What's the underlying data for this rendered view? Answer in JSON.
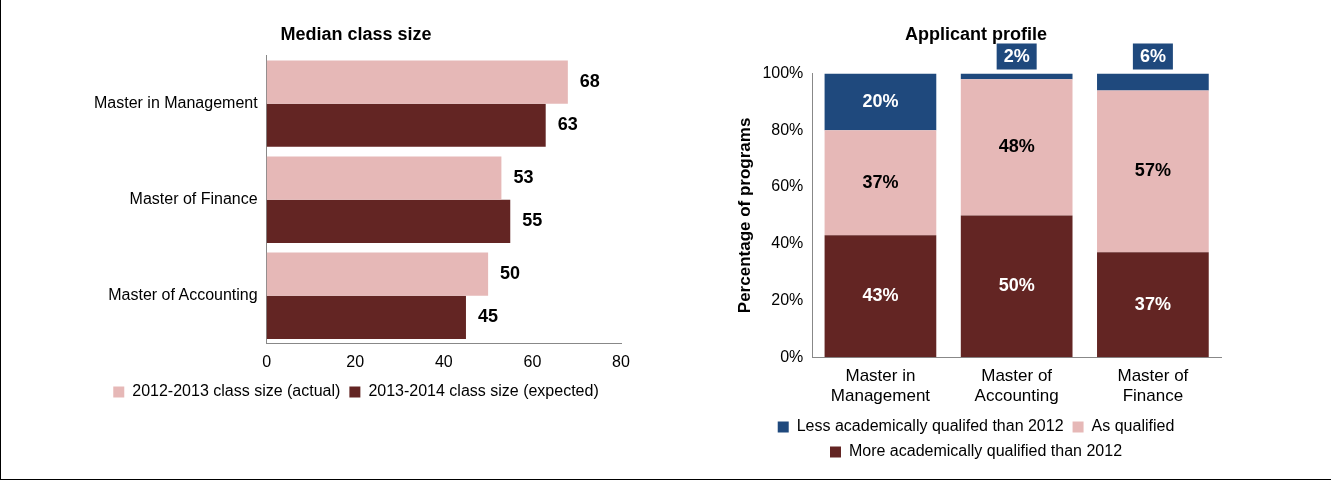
{
  "chart_data": [
    {
      "type": "bar",
      "title": "Median class size",
      "orientation": "horizontal",
      "categories": [
        "Master in Management",
        "Master of Finance",
        "Master of Accounting"
      ],
      "series": [
        {
          "name": "2012-2013 class size (actual)",
          "color": "#e6b8b7",
          "values": [
            68,
            53,
            50
          ]
        },
        {
          "name": "2013-2014 class size (expected)",
          "color": "#632523",
          "values": [
            63,
            55,
            45
          ]
        }
      ],
      "xlim": [
        0,
        80
      ],
      "xticks": [
        0,
        20,
        40,
        60,
        80
      ],
      "data_labels": true,
      "grid": false,
      "legend": "bottom"
    },
    {
      "type": "bar",
      "title": "Applicant profile",
      "ylabel": "Percentage of programs",
      "stacked": true,
      "categories": [
        "Master in Management",
        "Master of Accounting",
        "Master of Finance"
      ],
      "series": [
        {
          "name": "More academically qualified than 2012",
          "color": "#632523",
          "values": [
            43,
            50,
            37
          ],
          "value_labels": [
            "43%",
            "50%",
            "37%"
          ]
        },
        {
          "name": "As qualified",
          "color": "#e6b8b7",
          "values": [
            37,
            48,
            57
          ],
          "value_labels": [
            "37%",
            "48%",
            "57%"
          ]
        },
        {
          "name": "Less academically qualifed than 2012",
          "color": "#1f497d",
          "values": [
            20,
            2,
            6
          ],
          "value_labels": [
            "20%",
            "2%",
            "6%"
          ]
        }
      ],
      "ylim": [
        0,
        100
      ],
      "yticks": [
        {
          "value": 0,
          "label": "0%"
        },
        {
          "value": 20,
          "label": "20%"
        },
        {
          "value": 40,
          "label": "40%"
        },
        {
          "value": 60,
          "label": "60%"
        },
        {
          "value": 80,
          "label": "80%"
        },
        {
          "value": 100,
          "label": "100%"
        }
      ],
      "grid": false,
      "legend": "bottom"
    }
  ]
}
